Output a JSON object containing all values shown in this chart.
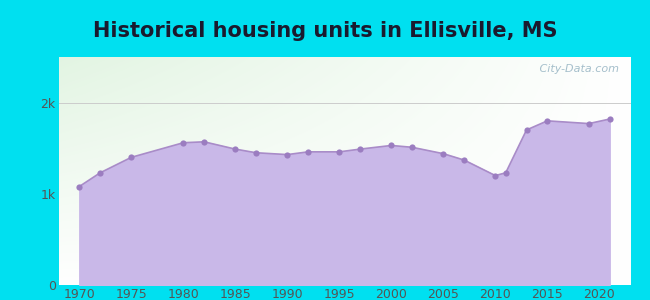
{
  "title": "Historical housing units in Ellisville, MS",
  "title_fontsize": 15,
  "title_fontweight": "bold",
  "title_color": "#1a1a2e",
  "background_outer": "#00e0f0",
  "fill_color": "#c9b8e8",
  "line_color": "#a98cc8",
  "marker_color": "#9b7dc0",
  "marker_size": 20,
  "years": [
    1970,
    1972,
    1975,
    1980,
    1982,
    1985,
    1987,
    1990,
    1992,
    1995,
    1997,
    2000,
    2002,
    2005,
    2007,
    2010,
    2011,
    2013,
    2015,
    2019,
    2021
  ],
  "values": [
    1080,
    1230,
    1400,
    1560,
    1570,
    1490,
    1450,
    1430,
    1460,
    1460,
    1490,
    1530,
    1510,
    1440,
    1370,
    1200,
    1230,
    1700,
    1800,
    1770,
    1820
  ],
  "xlim": [
    1968,
    2023
  ],
  "ylim": [
    0,
    2500
  ],
  "yticks": [
    0,
    1000,
    2000
  ],
  "ytick_labels": [
    "0",
    "1k",
    "2k"
  ],
  "xticks": [
    1970,
    1975,
    1980,
    1985,
    1990,
    1995,
    2000,
    2005,
    2010,
    2015,
    2020
  ],
  "watermark_text": " City-Data.com",
  "axis_label_color": "#555555",
  "tick_fontsize": 9,
  "grad_top_color": "#d6f0d6",
  "grad_bottom_color": "#f8fff8",
  "grad_right_color": "#ffffff"
}
